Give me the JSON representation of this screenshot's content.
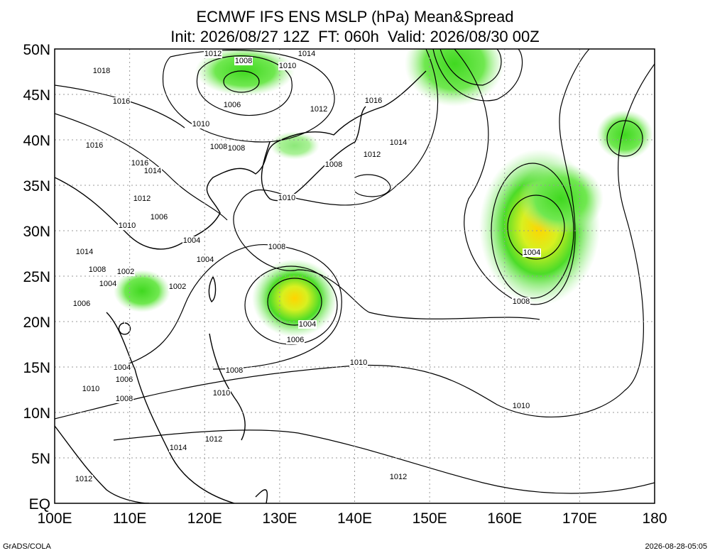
{
  "title": {
    "line1": "ECMWF IFS ENS MSLP (hPa) Mean&Spread",
    "line2": "Init: 2026/08/27 12Z  FT: 060h  Valid: 2026/08/30 00Z"
  },
  "axes": {
    "x_labels": [
      "100E",
      "110E",
      "120E",
      "130E",
      "140E",
      "150E",
      "160E",
      "170E",
      "180"
    ],
    "y_labels": [
      "50N",
      "45N",
      "40N",
      "35N",
      "30N",
      "25N",
      "20N",
      "15N",
      "10N",
      "5N",
      "EQ"
    ]
  },
  "contour_labels": [
    "1012",
    "1008",
    "1014",
    "1010",
    "1018",
    "1016",
    "1006",
    "1012",
    "1016",
    "1010",
    "1016",
    "1008",
    "1008",
    "1014",
    "1012",
    "1016",
    "1014",
    "1008",
    "1012",
    "1010",
    "1006",
    "1010",
    "1004",
    "1008",
    "1014",
    "1004",
    "1004",
    "1008",
    "1002",
    "1004",
    "1002",
    "1006",
    "1008",
    "1004",
    "1006",
    "1010",
    "1004",
    "1008",
    "1006",
    "1010",
    "1010",
    "1008",
    "1010",
    "1012",
    "1014",
    "1012",
    "1012"
  ],
  "footer": {
    "left": "GrADS/COLA",
    "right": "2026-08-28-05:05"
  }
}
